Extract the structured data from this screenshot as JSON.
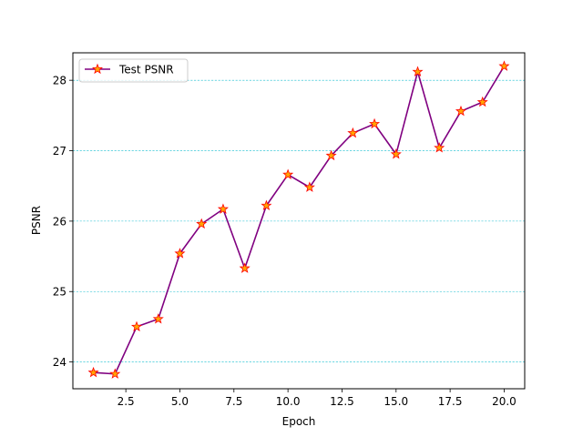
{
  "chart_data": {
    "type": "line",
    "xlabel": "Epoch",
    "ylabel": "PSNR",
    "xlim": [
      0.05,
      20.95
    ],
    "ylim": [
      23.62,
      28.39
    ],
    "x_ticks": [
      2.5,
      5.0,
      7.5,
      10.0,
      12.5,
      15.0,
      17.5,
      20.0
    ],
    "x_tick_labels": [
      "2.5",
      "5.0",
      "7.5",
      "10.0",
      "12.5",
      "15.0",
      "17.5",
      "20.0"
    ],
    "y_ticks": [
      24,
      25,
      26,
      27,
      28
    ],
    "y_tick_labels": [
      "24",
      "25",
      "26",
      "27",
      "28"
    ],
    "grid": "y-axis dashed",
    "legend_position": "upper-left",
    "series": [
      {
        "name": "Test PSNR",
        "line_color": "#800080",
        "marker": "star",
        "marker_face_color": "#ffa500",
        "marker_edge_color": "#ff0000",
        "x": [
          1,
          2,
          3,
          4,
          5,
          6,
          7,
          8,
          9,
          10,
          11,
          12,
          13,
          14,
          15,
          16,
          17,
          18,
          19,
          20
        ],
        "y": [
          23.85,
          23.83,
          24.5,
          24.61,
          25.54,
          25.96,
          26.17,
          25.33,
          26.22,
          26.66,
          26.48,
          26.93,
          27.25,
          27.38,
          26.95,
          28.12,
          27.04,
          27.56,
          27.69,
          28.2
        ]
      }
    ],
    "colors": {
      "grid": "#17becf",
      "axes": "#000000"
    }
  }
}
